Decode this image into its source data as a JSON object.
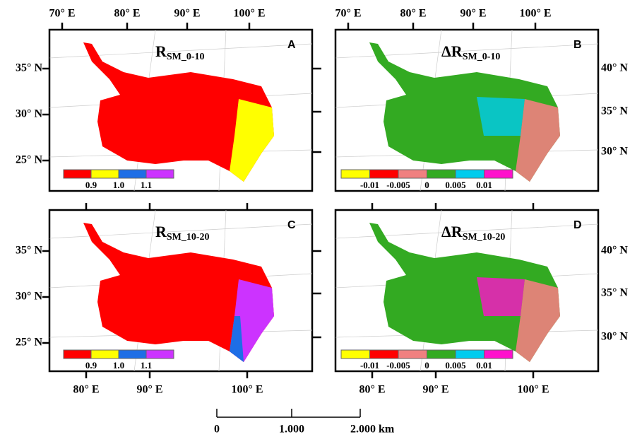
{
  "top_labels": [
    "70° E",
    "80° E",
    "90° E",
    "100° E"
  ],
  "left_labels": [
    "35° N",
    "30° N",
    "25° N"
  ],
  "right_labels": [
    "40° N",
    "35° N",
    "30° N"
  ],
  "bottom_labels": [
    "80° E",
    "90° E",
    "100° E"
  ],
  "scale_bar": [
    "0",
    "1.000",
    "2.000 km"
  ],
  "panels": [
    {
      "letter": "A",
      "title": {
        "main": "R",
        "sub": "SM_0-10"
      },
      "legend": {
        "colors": [
          "#ff0000",
          "#ffff00",
          "#1e6ee6",
          "#cc33ff"
        ],
        "labels": [
          "0.9",
          "1.0",
          "1.1"
        ]
      }
    },
    {
      "letter": "B",
      "title": {
        "main": "ΔR",
        "sub": "SM_0-10"
      },
      "legend": {
        "colors": [
          "#ffff00",
          "#ff0000",
          "#f08080",
          "#33aa22",
          "#00ccee",
          "#ff11cc"
        ],
        "labels": [
          "-0.01",
          "-0.005",
          "0",
          "0.005",
          "0.01"
        ]
      }
    },
    {
      "letter": "C",
      "title": {
        "main": "R",
        "sub": "SM_10-20"
      },
      "legend": {
        "colors": [
          "#ff0000",
          "#ffff00",
          "#1e6ee6",
          "#cc33ff"
        ],
        "labels": [
          "0.9",
          "1.0",
          "1.1"
        ]
      }
    },
    {
      "letter": "D",
      "title": {
        "main": "ΔR",
        "sub": "SM_10-20"
      },
      "legend": {
        "colors": [
          "#ffff00",
          "#ff0000",
          "#f08080",
          "#33aa22",
          "#00ccee",
          "#ff11cc"
        ],
        "labels": [
          "-0.01",
          "-0.005",
          "0",
          "0.005",
          "0.01"
        ]
      }
    }
  ]
}
